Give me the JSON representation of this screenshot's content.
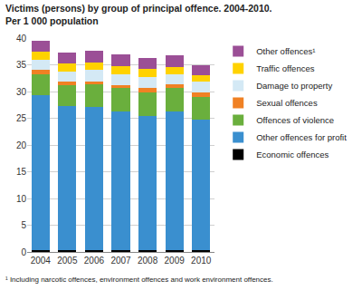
{
  "chart_data": {
    "type": "bar",
    "stacked": true,
    "title": "Victims (persons) by group of principal offence. 2004-2010.",
    "subtitle": "Per 1 000 population",
    "footnote": "¹ Including narcotic offences, environment offences and work environment offences.",
    "categories": [
      "2004",
      "2005",
      "2006",
      "2007",
      "2008",
      "2009",
      "2010"
    ],
    "series": [
      {
        "name": "Economic offences",
        "color": "#000000",
        "values": [
          0.3,
          0.3,
          0.3,
          0.3,
          0.3,
          0.3,
          0.3
        ]
      },
      {
        "name": "Other offences for profit",
        "color": "#3a8fcf",
        "values": [
          29.0,
          27.0,
          26.8,
          25.9,
          25.2,
          25.9,
          24.5
        ]
      },
      {
        "name": "Offences of violence",
        "color": "#6aaf3d",
        "values": [
          4.0,
          3.9,
          4.2,
          4.4,
          4.4,
          4.4,
          4.2
        ]
      },
      {
        "name": "Sexual offences",
        "color": "#f08124",
        "values": [
          0.7,
          0.6,
          0.6,
          0.6,
          0.7,
          0.7,
          0.8
        ]
      },
      {
        "name": "Damage to property",
        "color": "#d4e9f5",
        "values": [
          2.0,
          2.0,
          2.2,
          2.1,
          2.1,
          2.0,
          2.0
        ]
      },
      {
        "name": "Traffic offences",
        "color": "#ffd200",
        "values": [
          1.5,
          1.4,
          1.4,
          1.5,
          1.5,
          1.3,
          1.3
        ]
      },
      {
        "name": "Other offences¹",
        "color": "#9b4f96",
        "values": [
          2.0,
          2.1,
          2.1,
          2.1,
          2.0,
          2.1,
          1.9
        ]
      }
    ],
    "ylim": [
      0,
      40
    ],
    "yticks": [
      0,
      5,
      10,
      15,
      20,
      25,
      30,
      35,
      40
    ],
    "grid": true,
    "legend": "right"
  }
}
